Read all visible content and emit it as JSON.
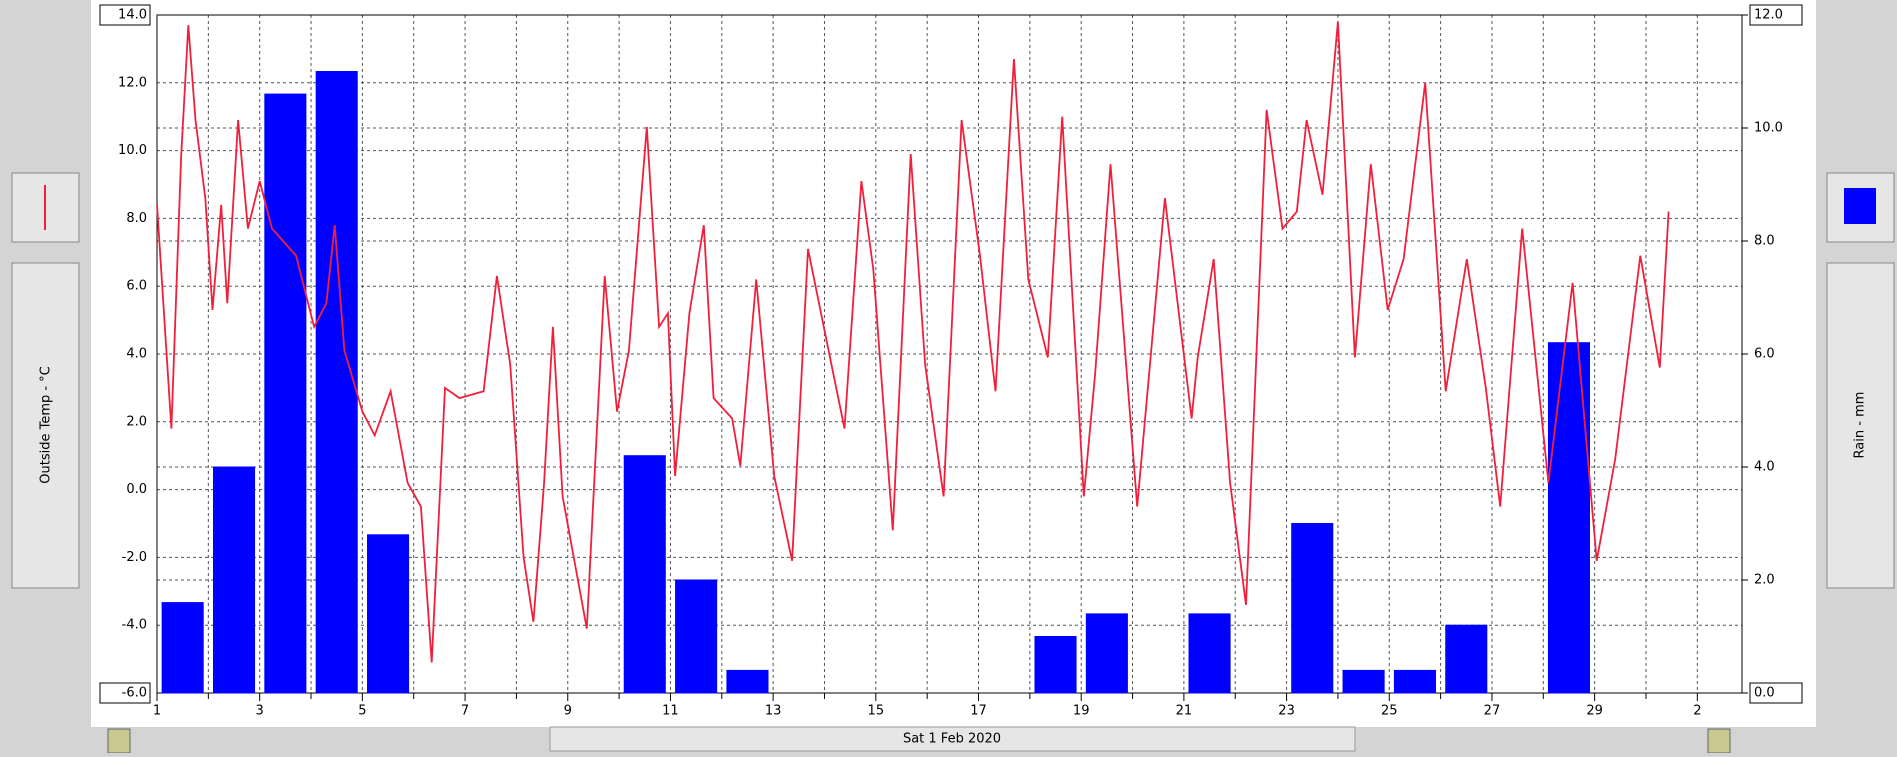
{
  "chart_data": {
    "type": "combo",
    "ylabel": "Outside Temp - °C",
    "y2label": "Rain - mm",
    "date_label": "Sat 1 Feb 2020",
    "xlim": [
      1,
      31.87
    ],
    "xticks": [
      1,
      3,
      5,
      7,
      9,
      11,
      13,
      15,
      17,
      19,
      21,
      23,
      25,
      27,
      29,
      {
        "value": 31,
        "label": "2"
      }
    ],
    "minor_xticks": [
      2,
      4,
      6,
      8,
      10,
      12,
      14,
      16,
      18,
      20,
      22,
      24,
      26,
      28,
      30
    ],
    "ylim": [
      -6,
      14
    ],
    "yticks": [
      {
        "value": -6,
        "label": "-6.0"
      },
      {
        "value": -4,
        "label": "-4.0"
      },
      {
        "value": -2,
        "label": "-2.0"
      },
      {
        "value": 0,
        "label": "0.0"
      },
      {
        "value": 2,
        "label": "2.0"
      },
      {
        "value": 4,
        "label": "4.0"
      },
      {
        "value": 6,
        "label": "6.0"
      },
      {
        "value": 8,
        "label": "8.0"
      },
      {
        "value": 10,
        "label": "10.0"
      },
      {
        "value": 12,
        "label": "12.0"
      },
      {
        "value": 14,
        "label": "14.0"
      }
    ],
    "y2lim": [
      0,
      12
    ],
    "y2ticks": [
      {
        "value": 0,
        "label": "0.0"
      },
      {
        "value": 2,
        "label": "2.0"
      },
      {
        "value": 4,
        "label": "4.0"
      },
      {
        "value": 6,
        "label": "6.0"
      },
      {
        "value": 8,
        "label": "8.0"
      },
      {
        "value": 10,
        "label": "10.0"
      },
      {
        "value": 12,
        "label": "12.0"
      }
    ],
    "grid": true,
    "series": [
      {
        "type": "line",
        "color": "#f0203c",
        "x": [
          1.0,
          1.28,
          1.47,
          1.61,
          1.75,
          1.94,
          2.08,
          2.25,
          2.37,
          2.58,
          2.77,
          3.0,
          3.24,
          3.71,
          4.06,
          4.3,
          4.46,
          4.65,
          5.0,
          5.24,
          5.55,
          5.88,
          6.14,
          6.35,
          6.61,
          6.89,
          7.36,
          7.62,
          7.88,
          8.14,
          8.33,
          8.54,
          8.71,
          8.9,
          9.37,
          9.72,
          9.96,
          10.19,
          10.54,
          10.78,
          10.95,
          11.09,
          11.37,
          11.65,
          11.84,
          12.2,
          12.36,
          12.67,
          13.02,
          13.37,
          13.68,
          13.96,
          14.39,
          14.72,
          14.95,
          15.33,
          15.68,
          15.96,
          16.32,
          16.67,
          17.03,
          17.33,
          17.69,
          17.97,
          18.35,
          18.63,
          19.05,
          19.27,
          19.57,
          20.09,
          20.63,
          21.15,
          21.27,
          21.58,
          21.9,
          22.21,
          22.61,
          22.92,
          23.2,
          23.39,
          23.7,
          24.0,
          24.33,
          24.64,
          24.97,
          25.28,
          25.7,
          26.1,
          26.51,
          26.88,
          27.16,
          27.59,
          28.1,
          28.57,
          29.04,
          29.4,
          29.89,
          30.27,
          30.44
        ],
        "values": [
          8.4,
          1.8,
          9.8,
          13.7,
          10.9,
          8.6,
          5.3,
          8.4,
          5.5,
          10.9,
          7.7,
          9.1,
          7.7,
          6.9,
          4.8,
          5.5,
          7.8,
          4.1,
          2.3,
          1.6,
          2.9,
          0.2,
          -0.5,
          -5.1,
          3.0,
          2.7,
          2.9,
          6.3,
          3.7,
          -2.0,
          -3.9,
          0.2,
          4.8,
          -0.2,
          -4.1,
          6.3,
          2.3,
          4.1,
          10.7,
          4.8,
          5.2,
          0.4,
          5.2,
          7.8,
          2.7,
          2.1,
          0.7,
          6.2,
          0.4,
          -2.1,
          7.1,
          5.0,
          1.8,
          9.1,
          6.5,
          -1.2,
          9.9,
          3.7,
          -0.2,
          10.9,
          6.9,
          2.9,
          12.7,
          6.2,
          3.9,
          11.0,
          -0.2,
          3.4,
          9.6,
          -0.5,
          8.6,
          2.1,
          3.9,
          6.8,
          0.2,
          -3.4,
          11.2,
          7.7,
          8.2,
          10.9,
          8.7,
          13.8,
          3.9,
          9.6,
          5.3,
          6.8,
          12.0,
          2.9,
          6.8,
          3.0,
          -0.5,
          7.7,
          0.2,
          6.1,
          -2.1,
          0.9,
          6.9,
          3.6,
          8.2
        ]
      },
      {
        "type": "bar",
        "axis": "y2",
        "color": "#0000ff",
        "x": [
          1,
          2,
          3,
          4,
          5,
          6,
          7,
          8,
          9,
          10,
          11,
          12,
          13,
          14,
          15,
          16,
          17,
          18,
          19,
          20,
          21,
          22,
          23,
          24,
          25,
          26,
          27,
          28,
          29,
          30
        ],
        "values": [
          1.6,
          4.0,
          10.6,
          11.0,
          2.8,
          0,
          0,
          0,
          0,
          4.2,
          2.0,
          0.4,
          0,
          0,
          0,
          0,
          0,
          1.0,
          1.4,
          0,
          1.4,
          0,
          3.0,
          0.4,
          0.4,
          1.2,
          0,
          6.2,
          0,
          0
        ]
      }
    ]
  }
}
